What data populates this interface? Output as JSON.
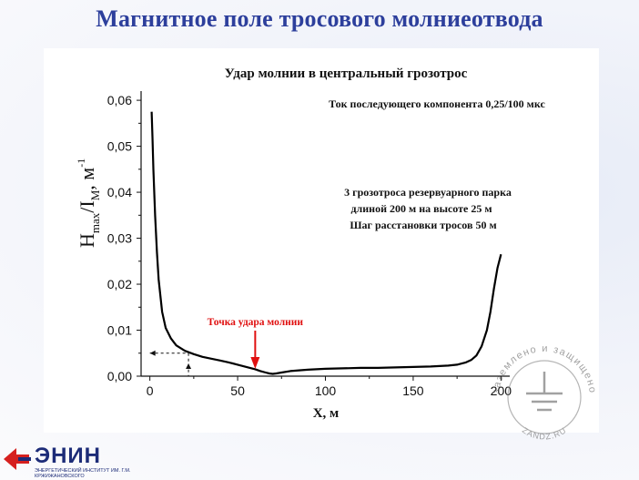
{
  "slide": {
    "title": "Магнитное поле тросового молниеотвода"
  },
  "chart_data": {
    "type": "line",
    "title": "Удар молнии в центральный грозотрос",
    "subtitle": "Ток последующего компонента 0,25/100 мкс",
    "info_lines": [
      "3 грозотроса резервуарного парка",
      "длиной 200 м на высоте 25 м",
      "Шаг расстановки тросов 50 м"
    ],
    "xlabel": "X,  м",
    "ylabel_main": "H",
    "ylabel_sub": "max",
    "ylabel_slash": "/I",
    "ylabel_m": "M",
    "ylabel_unit": ", м",
    "ylabel_sup": "-1",
    "xlim": [
      -5,
      205
    ],
    "ylim": [
      0,
      0.062
    ],
    "xticks": [
      0,
      50,
      100,
      150,
      200
    ],
    "xtick_labels": [
      "0",
      "50",
      "100",
      "150",
      "200"
    ],
    "yticks": [
      0.0,
      0.01,
      0.02,
      0.03,
      0.04,
      0.05,
      0.06
    ],
    "ytick_labels": [
      "0,00",
      "0,01",
      "0,02",
      "0,03",
      "0,04",
      "0,05",
      "0,06"
    ],
    "series": [
      {
        "color": "#000000",
        "x": [
          1,
          1.5,
          2,
          3,
          4,
          5,
          7,
          9,
          12,
          15,
          20,
          25,
          30,
          35,
          40,
          45,
          50,
          55,
          60,
          63,
          66,
          68,
          70,
          72,
          75,
          80,
          90,
          100,
          110,
          120,
          130,
          140,
          150,
          160,
          170,
          175,
          180,
          183,
          186,
          189,
          192,
          194,
          196,
          198,
          200
        ],
        "y": [
          0.0575,
          0.052,
          0.045,
          0.035,
          0.027,
          0.021,
          0.014,
          0.0105,
          0.0082,
          0.0067,
          0.0055,
          0.0048,
          0.0042,
          0.0038,
          0.0034,
          0.003,
          0.0025,
          0.002,
          0.0015,
          0.0011,
          0.0008,
          0.0006,
          0.0005,
          0.0006,
          0.0008,
          0.0011,
          0.0014,
          0.0016,
          0.0017,
          0.0018,
          0.0018,
          0.0019,
          0.002,
          0.0021,
          0.0023,
          0.0025,
          0.003,
          0.0035,
          0.0045,
          0.0065,
          0.01,
          0.014,
          0.019,
          0.0235,
          0.0265
        ]
      }
    ],
    "annotation": {
      "label": "Точка удара молнии",
      "x": 60,
      "color": "#e01010"
    },
    "guide": {
      "x": 22,
      "y": 0.005
    },
    "grid": false,
    "legend": "none"
  },
  "watermark": {
    "ring_text_top": "заземлено и защищено",
    "ring_text_bottom": "ZANDZ.RU",
    "icon": "ground-icon"
  },
  "footer": {
    "logo_text": "ЭНИН",
    "logo_sub": "Энергетический институт им. Г.М. Кржижановского",
    "logo_icon": "arrow-logo-icon",
    "brand_color": "#1d2c78",
    "accent_color": "#d6201f"
  }
}
